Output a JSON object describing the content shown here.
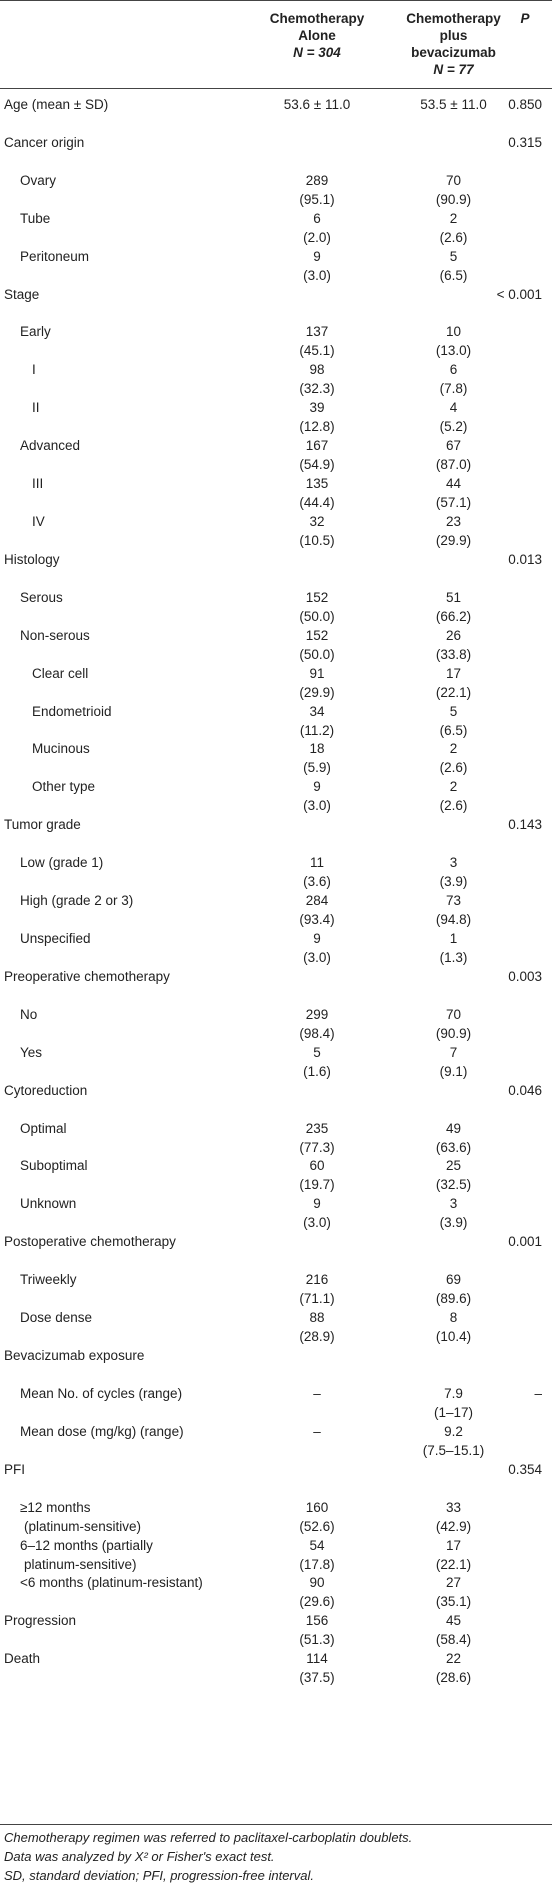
{
  "header": {
    "col1": [
      "Chemotherapy",
      "Alone",
      "N = 304"
    ],
    "col2": [
      "Chemotherapy",
      "plus",
      "bevacizumab",
      "N = 77"
    ],
    "p": "P"
  },
  "rows": [
    {
      "label": "Age (mean ± SD)",
      "indent": 0,
      "c1a": "53.6 ± 11.0",
      "c1b": "",
      "c2a": "53.5 ± 11.0",
      "c2b": "",
      "p": "0.850"
    },
    {
      "label": "Cancer origin",
      "indent": 0,
      "c1a": "",
      "c1b": "",
      "c2a": "",
      "c2b": "",
      "p": "0.315"
    },
    {
      "label": "Ovary",
      "indent": 1,
      "c1a": "289",
      "c1b": "(95.1)",
      "c2a": "70",
      "c2b": "(90.9)",
      "p": ""
    },
    {
      "label": "Tube",
      "indent": 1,
      "c1a": "6",
      "c1b": "(2.0)",
      "c2a": "2",
      "c2b": "(2.6)",
      "p": ""
    },
    {
      "label": "Peritoneum",
      "indent": 1,
      "c1a": "9",
      "c1b": "(3.0)",
      "c2a": "5",
      "c2b": "(6.5)",
      "p": ""
    },
    {
      "label": "Stage",
      "indent": 0,
      "c1a": "",
      "c1b": "",
      "c2a": "",
      "c2b": "",
      "p": "< 0.001"
    },
    {
      "label": "Early",
      "indent": 1,
      "c1a": "137",
      "c1b": "(45.1)",
      "c2a": "10",
      "c2b": "(13.0)",
      "p": ""
    },
    {
      "label": "I",
      "indent": 2,
      "c1a": "98",
      "c1b": "(32.3)",
      "c2a": "6",
      "c2b": "(7.8)",
      "p": ""
    },
    {
      "label": "II",
      "indent": 2,
      "c1a": "39",
      "c1b": "(12.8)",
      "c2a": "4",
      "c2b": "(5.2)",
      "p": ""
    },
    {
      "label": "Advanced",
      "indent": 1,
      "c1a": "167",
      "c1b": "(54.9)",
      "c2a": "67",
      "c2b": "(87.0)",
      "p": ""
    },
    {
      "label": "III",
      "indent": 2,
      "c1a": "135",
      "c1b": "(44.4)",
      "c2a": "44",
      "c2b": "(57.1)",
      "p": ""
    },
    {
      "label": "IV",
      "indent": 2,
      "c1a": "32",
      "c1b": "(10.5)",
      "c2a": "23",
      "c2b": "(29.9)",
      "p": ""
    },
    {
      "label": "Histology",
      "indent": 0,
      "c1a": "",
      "c1b": "",
      "c2a": "",
      "c2b": "",
      "p": "0.013"
    },
    {
      "label": "Serous",
      "indent": 1,
      "c1a": "152",
      "c1b": "(50.0)",
      "c2a": "51",
      "c2b": "(66.2)",
      "p": ""
    },
    {
      "label": "Non-serous",
      "indent": 1,
      "c1a": "152",
      "c1b": "(50.0)",
      "c2a": "26",
      "c2b": "(33.8)",
      "p": ""
    },
    {
      "label": "Clear cell",
      "indent": 2,
      "c1a": "91",
      "c1b": "(29.9)",
      "c2a": "17",
      "c2b": "(22.1)",
      "p": ""
    },
    {
      "label": "Endometrioid",
      "indent": 2,
      "c1a": "34",
      "c1b": "(11.2)",
      "c2a": "5",
      "c2b": "(6.5)",
      "p": ""
    },
    {
      "label": "Mucinous",
      "indent": 2,
      "c1a": "18",
      "c1b": "(5.9)",
      "c2a": "2",
      "c2b": "(2.6)",
      "p": ""
    },
    {
      "label": "Other type",
      "indent": 2,
      "c1a": "9",
      "c1b": "(3.0)",
      "c2a": "2",
      "c2b": "(2.6)",
      "p": ""
    },
    {
      "label": "Tumor grade",
      "indent": 0,
      "c1a": "",
      "c1b": "",
      "c2a": "",
      "c2b": "",
      "p": "0.143"
    },
    {
      "label": "Low (grade 1)",
      "indent": 1,
      "c1a": "11",
      "c1b": "(3.6)",
      "c2a": "3",
      "c2b": "(3.9)",
      "p": ""
    },
    {
      "label": "High (grade 2 or 3)",
      "indent": 1,
      "c1a": "284",
      "c1b": "(93.4)",
      "c2a": "73",
      "c2b": "(94.8)",
      "p": ""
    },
    {
      "label": "Unspecified",
      "indent": 1,
      "c1a": "9",
      "c1b": "(3.0)",
      "c2a": "1",
      "c2b": "(1.3)",
      "p": ""
    },
    {
      "label": "Preoperative chemotherapy",
      "indent": 0,
      "c1a": "",
      "c1b": "",
      "c2a": "",
      "c2b": "",
      "p": "0.003"
    },
    {
      "label": "No",
      "indent": 1,
      "c1a": "299",
      "c1b": "(98.4)",
      "c2a": "70",
      "c2b": "(90.9)",
      "p": ""
    },
    {
      "label": "Yes",
      "indent": 1,
      "c1a": "5",
      "c1b": "(1.6)",
      "c2a": "7",
      "c2b": "(9.1)",
      "p": ""
    },
    {
      "label": "Cytoreduction",
      "indent": 0,
      "c1a": "",
      "c1b": "",
      "c2a": "",
      "c2b": "",
      "p": "0.046"
    },
    {
      "label": "Optimal",
      "indent": 1,
      "c1a": "235",
      "c1b": "(77.3)",
      "c2a": "49",
      "c2b": "(63.6)",
      "p": ""
    },
    {
      "label": "Suboptimal",
      "indent": 1,
      "c1a": "60",
      "c1b": "(19.7)",
      "c2a": "25",
      "c2b": "(32.5)",
      "p": ""
    },
    {
      "label": "Unknown",
      "indent": 1,
      "c1a": "9",
      "c1b": "(3.0)",
      "c2a": "3",
      "c2b": "(3.9)",
      "p": ""
    },
    {
      "label": "Postoperative chemotherapy",
      "indent": 0,
      "c1a": "",
      "c1b": "",
      "c2a": "",
      "c2b": "",
      "p": "0.001"
    },
    {
      "label": "Triweekly",
      "indent": 1,
      "c1a": "216",
      "c1b": "(71.1)",
      "c2a": "69",
      "c2b": "(89.6)",
      "p": ""
    },
    {
      "label": "Dose dense",
      "indent": 1,
      "c1a": "88",
      "c1b": "(28.9)",
      "c2a": "8",
      "c2b": "(10.4)",
      "p": ""
    },
    {
      "label": "Bevacizumab exposure",
      "indent": 0,
      "c1a": "",
      "c1b": "",
      "c2a": "",
      "c2b": "",
      "p": ""
    },
    {
      "label": "Mean No. of cycles (range)",
      "indent": 1,
      "c1a": "–",
      "c1b": "",
      "c2a": "7.9",
      "c2b": "(1–17)",
      "p": "–"
    },
    {
      "label": "Mean dose (mg/kg) (range)",
      "indent": 1,
      "c1a": "–",
      "c1b": "",
      "c2a": "9.2",
      "c2b": "(7.5–15.1)",
      "p": ""
    },
    {
      "label": "PFI",
      "indent": 0,
      "c1a": "",
      "c1b": "",
      "c2a": "",
      "c2b": "",
      "p": "0.354"
    },
    {
      "label": "≥12 months",
      "label2": "(platinum-sensitive)",
      "indent": 1,
      "c1a": "160",
      "c1b": "(52.6)",
      "c2a": "33",
      "c2b": "(42.9)",
      "p": ""
    },
    {
      "label": "6–12 months (partially",
      "label2": "platinum-sensitive)",
      "indent": 1,
      "c1a": "54",
      "c1b": "(17.8)",
      "c2a": "17",
      "c2b": "(22.1)",
      "p": ""
    },
    {
      "label": "<6 months (platinum-resistant)",
      "indent": 1,
      "c1a": "90",
      "c1b": "(29.6)",
      "c2a": "27",
      "c2b": "(35.1)",
      "p": ""
    },
    {
      "label": "Progression",
      "indent": 0,
      "c1a": "156",
      "c1b": "(51.3)",
      "c2a": "45",
      "c2b": "(58.4)",
      "p": ""
    },
    {
      "label": "Death",
      "indent": 0,
      "c1a": "114",
      "c1b": "(37.5)",
      "c2a": "22",
      "c2b": "(28.6)",
      "p": ""
    }
  ],
  "footnotes": [
    "Chemotherapy regimen was referred to paclitaxel-carboplatin doublets.",
    "Data was analyzed by X² or Fisher's exact test.",
    "SD, standard deviation; PFI, progression-free interval."
  ]
}
